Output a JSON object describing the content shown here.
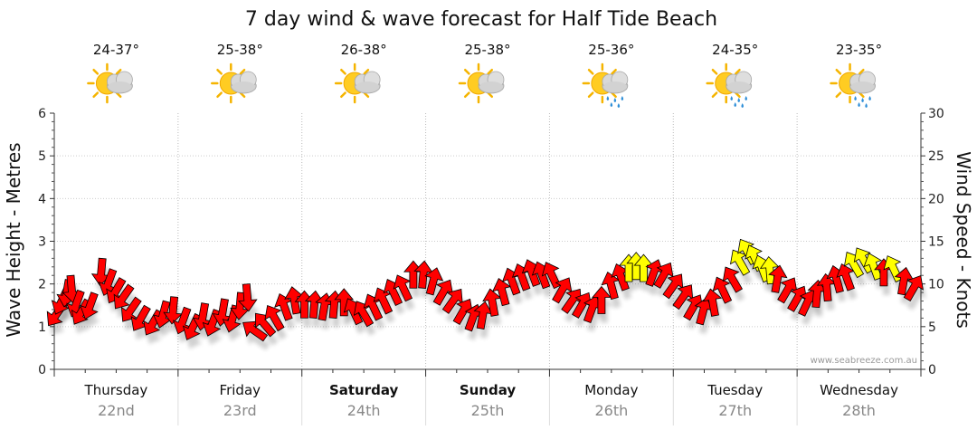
{
  "title": "7 day wind & wave forecast for Half Tide Beach",
  "watermark": "www.seabreeze.com.au",
  "colors": {
    "wave_strong": "#ff0000",
    "wave_light": "#ffff00",
    "arrow_outline": "#000000",
    "grid": "#bbbbbb",
    "date_text": "#888888"
  },
  "days": [
    {
      "name": "Thursday",
      "date": "22nd",
      "temp": "24-37°",
      "weather_icon": "sun-cloud-icon",
      "bold": false
    },
    {
      "name": "Friday",
      "date": "23rd",
      "temp": "25-38°",
      "weather_icon": "sun-cloud-icon",
      "bold": false
    },
    {
      "name": "Saturday",
      "date": "24th",
      "temp": "26-38°",
      "weather_icon": "sun-cloud-icon",
      "bold": true
    },
    {
      "name": "Sunday",
      "date": "25th",
      "temp": "25-38°",
      "weather_icon": "sun-cloud-icon",
      "bold": true
    },
    {
      "name": "Monday",
      "date": "26th",
      "temp": "25-36°",
      "weather_icon": "sun-cloud-rain-icon",
      "bold": false
    },
    {
      "name": "Tuesday",
      "date": "27th",
      "temp": "24-35°",
      "weather_icon": "sun-cloud-rain-icon",
      "bold": false
    },
    {
      "name": "Wednesday",
      "date": "28th",
      "temp": "23-35°",
      "weather_icon": "sun-cloud-rain-icon",
      "bold": false
    }
  ],
  "chart_data": {
    "type": "scatter",
    "title": "7 day wind & wave forecast for Half Tide Beach",
    "ylabel_left": "Wave Height - Metres",
    "ylabel_right": "Wind Speed - Knots",
    "ylim_left": [
      0,
      6
    ],
    "ylim_right": [
      0,
      30
    ],
    "yticks_left": [
      "0",
      "1",
      "2",
      "3",
      "4",
      "5",
      "6"
    ],
    "yticks_right": [
      "0",
      "5",
      "10",
      "15",
      "20",
      "25",
      "30"
    ],
    "x_unit": "day index (0 = start of Thursday 22nd)",
    "xlim": [
      0,
      7
    ],
    "grid": true,
    "series": [
      {
        "points": [
          {
            "x": 0.02,
            "y": 1.3,
            "dir": 125,
            "c": "r"
          },
          {
            "x": 0.06,
            "y": 1.6,
            "dir": 115,
            "c": "r"
          },
          {
            "x": 0.1,
            "y": 1.8,
            "dir": 100,
            "c": "r"
          },
          {
            "x": 0.14,
            "y": 1.9,
            "dir": 85,
            "c": "r"
          },
          {
            "x": 0.18,
            "y": 1.55,
            "dir": 110,
            "c": "r"
          },
          {
            "x": 0.22,
            "y": 1.35,
            "dir": 120,
            "c": "r"
          },
          {
            "x": 0.29,
            "y": 1.5,
            "dir": 110,
            "c": "r"
          },
          {
            "x": 0.38,
            "y": 2.3,
            "dir": 95,
            "c": "r"
          },
          {
            "x": 0.44,
            "y": 2.05,
            "dir": 110,
            "c": "r"
          },
          {
            "x": 0.5,
            "y": 1.85,
            "dir": 120,
            "c": "r"
          },
          {
            "x": 0.56,
            "y": 1.7,
            "dir": 125,
            "c": "r"
          },
          {
            "x": 0.62,
            "y": 1.4,
            "dir": 125,
            "c": "r"
          },
          {
            "x": 0.7,
            "y": 1.2,
            "dir": 120,
            "c": "r"
          },
          {
            "x": 0.8,
            "y": 1.1,
            "dir": 120,
            "c": "r"
          },
          {
            "x": 0.88,
            "y": 1.3,
            "dir": 105,
            "c": "r"
          },
          {
            "x": 0.96,
            "y": 1.4,
            "dir": 95,
            "c": "r"
          },
          {
            "x": 1.04,
            "y": 1.15,
            "dir": 110,
            "c": "r"
          },
          {
            "x": 1.12,
            "y": 1.0,
            "dir": 115,
            "c": "r"
          },
          {
            "x": 1.2,
            "y": 1.25,
            "dir": 100,
            "c": "r"
          },
          {
            "x": 1.28,
            "y": 1.1,
            "dir": 110,
            "c": "r"
          },
          {
            "x": 1.36,
            "y": 1.35,
            "dir": 100,
            "c": "r"
          },
          {
            "x": 1.44,
            "y": 1.2,
            "dir": 105,
            "c": "r"
          },
          {
            "x": 1.5,
            "y": 1.5,
            "dir": 95,
            "c": "r"
          },
          {
            "x": 1.56,
            "y": 1.7,
            "dir": 85,
            "c": "r"
          },
          {
            "x": 1.62,
            "y": 0.9,
            "dir": 215,
            "c": "r"
          },
          {
            "x": 1.7,
            "y": 1.05,
            "dir": 230,
            "c": "r"
          },
          {
            "x": 1.78,
            "y": 1.2,
            "dir": 240,
            "c": "r"
          },
          {
            "x": 1.86,
            "y": 1.45,
            "dir": 250,
            "c": "r"
          },
          {
            "x": 1.94,
            "y": 1.6,
            "dir": 260,
            "c": "r"
          },
          {
            "x": 2.02,
            "y": 1.5,
            "dir": 270,
            "c": "r"
          },
          {
            "x": 2.1,
            "y": 1.5,
            "dir": 275,
            "c": "r"
          },
          {
            "x": 2.18,
            "y": 1.45,
            "dir": 280,
            "c": "r"
          },
          {
            "x": 2.26,
            "y": 1.5,
            "dir": 275,
            "c": "r"
          },
          {
            "x": 2.34,
            "y": 1.55,
            "dir": 270,
            "c": "r"
          },
          {
            "x": 2.42,
            "y": 1.35,
            "dir": 245,
            "c": "r"
          },
          {
            "x": 2.5,
            "y": 1.3,
            "dir": 240,
            "c": "r"
          },
          {
            "x": 2.58,
            "y": 1.45,
            "dir": 245,
            "c": "r"
          },
          {
            "x": 2.66,
            "y": 1.6,
            "dir": 245,
            "c": "r"
          },
          {
            "x": 2.74,
            "y": 1.8,
            "dir": 245,
            "c": "r"
          },
          {
            "x": 2.82,
            "y": 1.9,
            "dir": 245,
            "c": "r"
          },
          {
            "x": 2.9,
            "y": 2.2,
            "dir": 270,
            "c": "r"
          },
          {
            "x": 2.98,
            "y": 2.2,
            "dir": 275,
            "c": "r"
          },
          {
            "x": 3.06,
            "y": 2.05,
            "dir": 285,
            "c": "r"
          },
          {
            "x": 3.14,
            "y": 1.8,
            "dir": 300,
            "c": "r"
          },
          {
            "x": 3.22,
            "y": 1.6,
            "dir": 305,
            "c": "r"
          },
          {
            "x": 3.3,
            "y": 1.35,
            "dir": 300,
            "c": "r"
          },
          {
            "x": 3.38,
            "y": 1.2,
            "dir": 290,
            "c": "r"
          },
          {
            "x": 3.46,
            "y": 1.25,
            "dir": 280,
            "c": "r"
          },
          {
            "x": 3.54,
            "y": 1.55,
            "dir": 260,
            "c": "r"
          },
          {
            "x": 3.62,
            "y": 1.8,
            "dir": 255,
            "c": "r"
          },
          {
            "x": 3.7,
            "y": 2.05,
            "dir": 250,
            "c": "r"
          },
          {
            "x": 3.78,
            "y": 2.15,
            "dir": 250,
            "c": "r"
          },
          {
            "x": 3.86,
            "y": 2.25,
            "dir": 250,
            "c": "r"
          },
          {
            "x": 3.94,
            "y": 2.2,
            "dir": 250,
            "c": "r"
          },
          {
            "x": 4.02,
            "y": 2.2,
            "dir": 245,
            "c": "r"
          },
          {
            "x": 4.1,
            "y": 1.85,
            "dir": 300,
            "c": "r"
          },
          {
            "x": 4.18,
            "y": 1.6,
            "dir": 305,
            "c": "r"
          },
          {
            "x": 4.26,
            "y": 1.5,
            "dir": 300,
            "c": "r"
          },
          {
            "x": 4.34,
            "y": 1.4,
            "dir": 290,
            "c": "r"
          },
          {
            "x": 4.42,
            "y": 1.6,
            "dir": 270,
            "c": "r"
          },
          {
            "x": 4.5,
            "y": 1.95,
            "dir": 255,
            "c": "r"
          },
          {
            "x": 4.58,
            "y": 2.15,
            "dir": 250,
            "c": "r"
          },
          {
            "x": 4.64,
            "y": 2.35,
            "dir": 270,
            "c": "y"
          },
          {
            "x": 4.7,
            "y": 2.4,
            "dir": 270,
            "c": "y"
          },
          {
            "x": 4.76,
            "y": 2.35,
            "dir": 270,
            "c": "y"
          },
          {
            "x": 4.84,
            "y": 2.25,
            "dir": 290,
            "c": "r"
          },
          {
            "x": 4.92,
            "y": 2.2,
            "dir": 300,
            "c": "r"
          },
          {
            "x": 5.0,
            "y": 1.95,
            "dir": 305,
            "c": "r"
          },
          {
            "x": 5.08,
            "y": 1.7,
            "dir": 305,
            "c": "r"
          },
          {
            "x": 5.16,
            "y": 1.45,
            "dir": 300,
            "c": "r"
          },
          {
            "x": 5.24,
            "y": 1.35,
            "dir": 285,
            "c": "r"
          },
          {
            "x": 5.32,
            "y": 1.55,
            "dir": 260,
            "c": "r"
          },
          {
            "x": 5.4,
            "y": 1.85,
            "dir": 245,
            "c": "r"
          },
          {
            "x": 5.48,
            "y": 2.1,
            "dir": 240,
            "c": "r"
          },
          {
            "x": 5.54,
            "y": 2.5,
            "dir": 240,
            "c": "y"
          },
          {
            "x": 5.6,
            "y": 2.75,
            "dir": 240,
            "c": "y"
          },
          {
            "x": 5.66,
            "y": 2.6,
            "dir": 245,
            "c": "y"
          },
          {
            "x": 5.72,
            "y": 2.35,
            "dir": 250,
            "c": "y"
          },
          {
            "x": 5.78,
            "y": 2.3,
            "dir": 265,
            "c": "y"
          },
          {
            "x": 5.84,
            "y": 2.1,
            "dir": 280,
            "c": "r"
          },
          {
            "x": 5.92,
            "y": 1.85,
            "dir": 300,
            "c": "r"
          },
          {
            "x": 6.0,
            "y": 1.65,
            "dir": 300,
            "c": "r"
          },
          {
            "x": 6.08,
            "y": 1.55,
            "dir": 295,
            "c": "r"
          },
          {
            "x": 6.16,
            "y": 1.75,
            "dir": 275,
            "c": "r"
          },
          {
            "x": 6.24,
            "y": 1.9,
            "dir": 265,
            "c": "r"
          },
          {
            "x": 6.32,
            "y": 2.1,
            "dir": 255,
            "c": "r"
          },
          {
            "x": 6.4,
            "y": 2.15,
            "dir": 250,
            "c": "r"
          },
          {
            "x": 6.46,
            "y": 2.45,
            "dir": 240,
            "c": "y"
          },
          {
            "x": 6.54,
            "y": 2.55,
            "dir": 240,
            "c": "y"
          },
          {
            "x": 6.62,
            "y": 2.4,
            "dir": 250,
            "c": "y"
          },
          {
            "x": 6.7,
            "y": 2.25,
            "dir": 270,
            "c": "r"
          },
          {
            "x": 6.78,
            "y": 2.35,
            "dir": 245,
            "c": "y"
          },
          {
            "x": 6.86,
            "y": 2.05,
            "dir": 280,
            "c": "r"
          },
          {
            "x": 6.94,
            "y": 1.9,
            "dir": 300,
            "c": "r"
          }
        ]
      }
    ]
  }
}
